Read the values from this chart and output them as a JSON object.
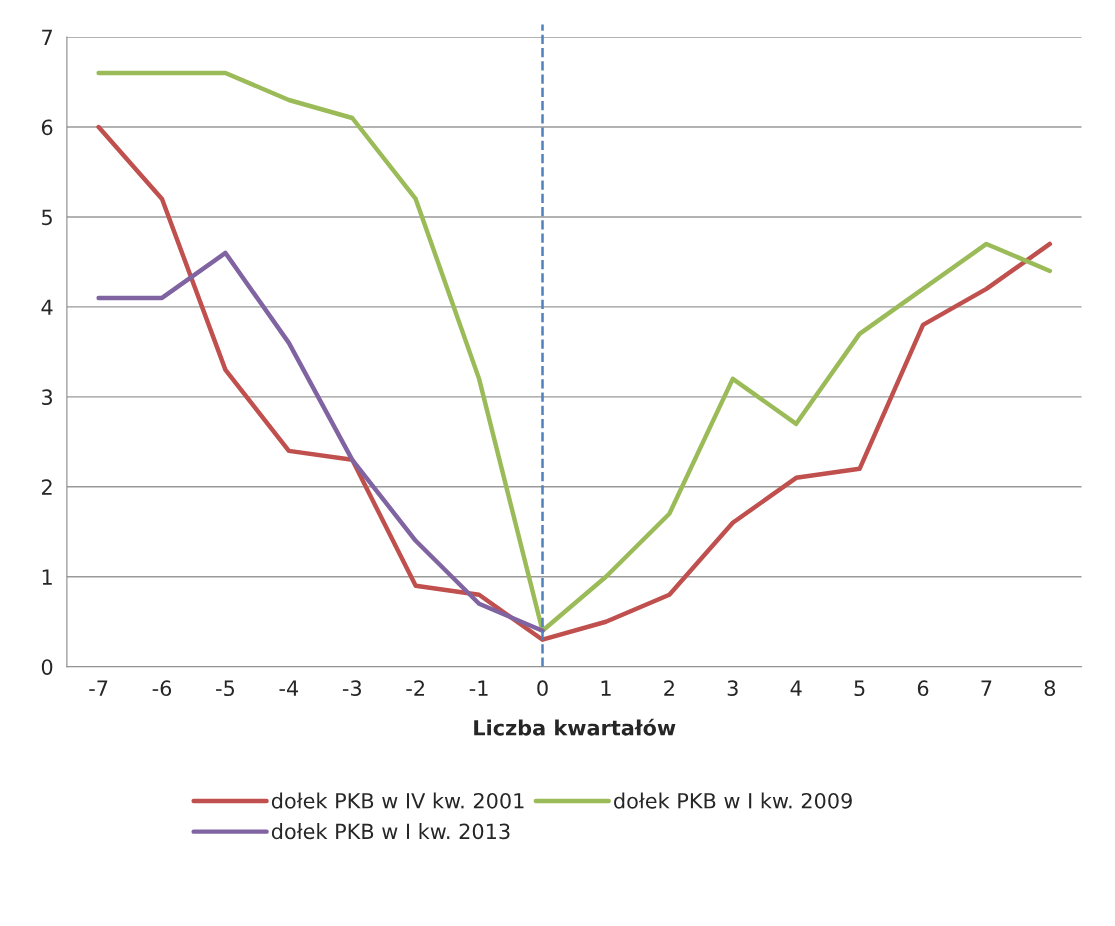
{
  "chart_data": {
    "type": "line",
    "xlabel": "Liczba kwartałów",
    "x": [
      -7,
      -6,
      -5,
      -4,
      -3,
      -2,
      -1,
      0,
      1,
      2,
      3,
      4,
      5,
      6,
      7,
      8
    ],
    "xlim": [
      -7.5,
      8.5
    ],
    "xticks": [
      -7,
      -6,
      -5,
      -4,
      -3,
      -2,
      -1,
      0,
      1,
      2,
      3,
      4,
      5,
      6,
      7,
      8
    ],
    "ylim": [
      0,
      7
    ],
    "yticks": [
      0,
      1,
      2,
      3,
      4,
      5,
      6,
      7
    ],
    "grid": "y",
    "legend": "bottom",
    "marker": "none",
    "line_style": "solid",
    "series": [
      {
        "name": "dołek PKB w IV kw. 2001",
        "color": "#c0504d",
        "values": [
          6.0,
          5.2,
          3.3,
          2.4,
          2.3,
          0.9,
          0.8,
          0.3,
          0.5,
          0.8,
          1.6,
          2.1,
          2.2,
          3.8,
          4.2,
          4.7
        ]
      },
      {
        "name": "dołek PKB w I kw. 2009",
        "color": "#9bbb59",
        "values": [
          6.6,
          6.6,
          6.6,
          6.3,
          6.1,
          5.2,
          3.2,
          0.4,
          1.0,
          1.7,
          3.2,
          2.7,
          3.7,
          4.2,
          4.7,
          4.4
        ]
      },
      {
        "name": "dołek PKB w I kw. 2013",
        "color": "#8064a2",
        "values": [
          4.1,
          4.1,
          4.6,
          3.6,
          2.3,
          1.4,
          0.7,
          0.4,
          null,
          null,
          null,
          null,
          null,
          null,
          null,
          null
        ]
      }
    ],
    "ref_lines": [
      {
        "axis": "x",
        "value": 0,
        "color": "#4f81bd",
        "line_style": "dashed"
      }
    ]
  }
}
